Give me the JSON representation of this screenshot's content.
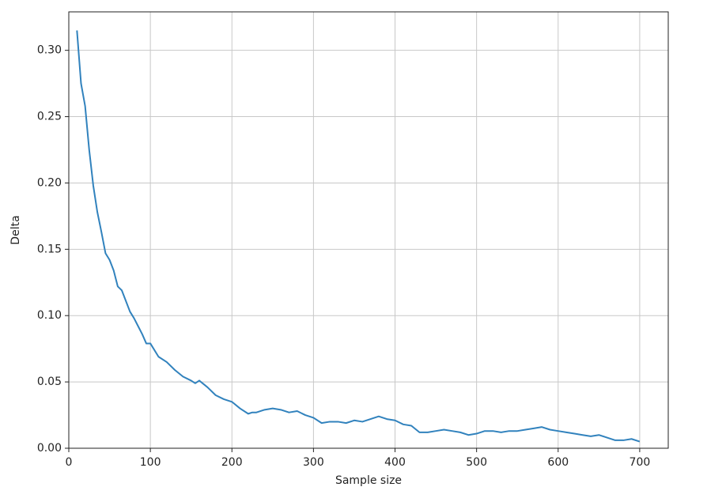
{
  "chart_data": {
    "type": "line",
    "x_label": "Sample size",
    "y_label": "Delta",
    "x": [
      10,
      15,
      20,
      25,
      30,
      35,
      40,
      45,
      50,
      55,
      60,
      65,
      70,
      75,
      80,
      85,
      90,
      95,
      100,
      110,
      120,
      130,
      140,
      150,
      155,
      160,
      170,
      180,
      190,
      200,
      210,
      220,
      225,
      230,
      240,
      250,
      260,
      270,
      280,
      290,
      300,
      310,
      320,
      330,
      340,
      350,
      360,
      370,
      380,
      390,
      400,
      410,
      420,
      430,
      440,
      450,
      460,
      470,
      480,
      490,
      500,
      510,
      520,
      530,
      540,
      550,
      560,
      570,
      580,
      590,
      600,
      610,
      620,
      630,
      640,
      650,
      660,
      670,
      680,
      690,
      700
    ],
    "series": [
      {
        "name": "Delta",
        "color": "#3182bd",
        "values": [
          0.315,
          0.275,
          0.258,
          0.225,
          0.198,
          0.178,
          0.163,
          0.147,
          0.142,
          0.134,
          0.122,
          0.119,
          0.111,
          0.103,
          0.098,
          0.092,
          0.086,
          0.079,
          0.079,
          0.069,
          0.065,
          0.059,
          0.054,
          0.051,
          0.049,
          0.051,
          0.046,
          0.04,
          0.037,
          0.035,
          0.03,
          0.026,
          0.027,
          0.027,
          0.029,
          0.03,
          0.029,
          0.027,
          0.028,
          0.025,
          0.023,
          0.019,
          0.02,
          0.02,
          0.019,
          0.021,
          0.02,
          0.022,
          0.024,
          0.022,
          0.021,
          0.018,
          0.017,
          0.012,
          0.012,
          0.013,
          0.014,
          0.013,
          0.012,
          0.01,
          0.011,
          0.013,
          0.013,
          0.012,
          0.013,
          0.013,
          0.014,
          0.015,
          0.016,
          0.014,
          0.013,
          0.012,
          0.011,
          0.01,
          0.009,
          0.01,
          0.008,
          0.006,
          0.006,
          0.007,
          0.005
        ]
      }
    ],
    "xlim": [
      0,
      735
    ],
    "ylim": [
      0,
      0.329
    ],
    "xticks": [
      0,
      100,
      200,
      300,
      400,
      500,
      600,
      700
    ],
    "yticks": [
      {
        "value": 0,
        "label": "0.00"
      },
      {
        "value": 0.05,
        "label": "0.05"
      },
      {
        "value": 0.1,
        "label": "0.10"
      },
      {
        "value": 0.15,
        "label": "0.15"
      },
      {
        "value": 0.2,
        "label": "0.20"
      },
      {
        "value": 0.25,
        "label": "0.25"
      },
      {
        "value": 0.3,
        "label": "0.30"
      }
    ],
    "grid": true
  }
}
